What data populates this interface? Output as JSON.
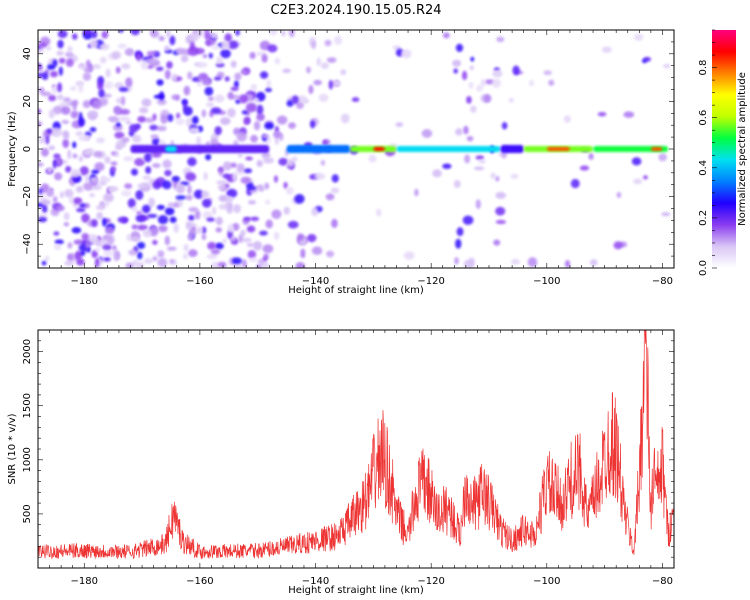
{
  "title": "C2E3.2024.190.15.05.R24",
  "chart_data": [
    {
      "type": "heatmap",
      "xlabel": "Height of straight line (km)",
      "ylabel": "Frequency (Hz)",
      "xlim": [
        -188,
        -78
      ],
      "ylim": [
        -50,
        50
      ],
      "x_ticks": [
        -180,
        -160,
        -140,
        -120,
        -100,
        -80
      ],
      "y_ticks": [
        -40,
        -20,
        0,
        20,
        40
      ],
      "colorbar": {
        "label": "Normalized spectral amplitude",
        "range": [
          0,
          0.95
        ],
        "ticks": [
          0.0,
          0.2,
          0.4,
          0.6,
          0.8
        ],
        "colors": [
          "#ffffff",
          "#d9c6f5",
          "#8b3cf0",
          "#2000ff",
          "#0080ff",
          "#00e0f0",
          "#00ff40",
          "#c0ff00",
          "#ffff00",
          "#ff8000",
          "#ff0000",
          "#ff0080"
        ]
      },
      "band": {
        "frequency": 0,
        "segments": [
          {
            "x": [
              -172,
              -148
            ],
            "level": 0.22
          },
          {
            "x": [
              -166,
              -164
            ],
            "level": 0.45
          },
          {
            "x": [
              -145,
              -134
            ],
            "level": 0.35
          },
          {
            "x": [
              -134,
              -126
            ],
            "level": 0.6
          },
          {
            "x": [
              -130,
              -128
            ],
            "level": 0.9
          },
          {
            "x": [
              -126,
              -108
            ],
            "level": 0.45
          },
          {
            "x": [
              -108,
              -104
            ],
            "level": 0.25
          },
          {
            "x": [
              -104,
              -92
            ],
            "level": 0.6
          },
          {
            "x": [
              -100,
              -96
            ],
            "level": 0.85
          },
          {
            "x": [
              -92,
              -79
            ],
            "level": 0.55
          },
          {
            "x": [
              -82,
              -80
            ],
            "level": 0.85
          }
        ]
      }
    },
    {
      "type": "line",
      "xlabel": "Height of straight line (km)",
      "ylabel": "SNR (10 * v/v)",
      "xlim": [
        -188,
        -78
      ],
      "ylim": [
        0,
        2200
      ],
      "x_ticks": [
        -180,
        -160,
        -140,
        -120,
        -100,
        -80
      ],
      "y_ticks": [
        500,
        1000,
        1500,
        2000
      ],
      "color": "#ee3333",
      "series": [
        {
          "x": [
            -188,
            -180,
            -172,
            -166,
            -164.5,
            -163,
            -160,
            -150,
            -145,
            -140,
            -136,
            -133,
            -131,
            -129.5,
            -128.5,
            -127,
            -126,
            -124,
            -122.5,
            -121,
            -119,
            -117,
            -115,
            -114,
            -113,
            -111,
            -109,
            -108,
            -106,
            -104,
            -102,
            -100,
            -99,
            -97,
            -96,
            -94,
            -93,
            -91,
            -90,
            -89,
            -88,
            -86.5,
            -85,
            -84,
            -83.5,
            -83,
            -82.5,
            -82,
            -81.5,
            -81,
            -80,
            -79,
            -78.5
          ],
          "values": [
            150,
            160,
            150,
            220,
            500,
            250,
            150,
            160,
            200,
            250,
            300,
            500,
            650,
            950,
            1050,
            800,
            500,
            300,
            700,
            800,
            500,
            550,
            300,
            800,
            550,
            700,
            500,
            350,
            250,
            350,
            300,
            800,
            700,
            600,
            800,
            900,
            450,
            800,
            1000,
            1200,
            1100,
            500,
            150,
            800,
            1500,
            2150,
            1400,
            500,
            900,
            700,
            950,
            300,
            450
          ]
        }
      ]
    }
  ]
}
